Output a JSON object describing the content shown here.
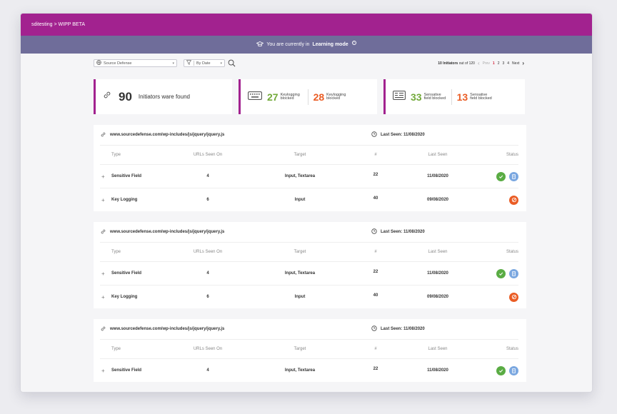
{
  "topbar": {
    "breadcrumb": "sditesting > WIPP BETA"
  },
  "mode_banner": {
    "prefix": "You are currently in",
    "mode": "Learning mode"
  },
  "toolbar": {
    "source_value": "Source Defense",
    "sort_value": "By Date",
    "pager": {
      "summary_count": "10 Initiators",
      "summary_rest": "out of 120",
      "prev": "Prev",
      "pages": [
        "1",
        "2",
        "3",
        "4"
      ],
      "active_page": "1",
      "next": "Next"
    }
  },
  "stats": {
    "initiators": {
      "count": "90",
      "label": "Initiators ware found"
    },
    "keylogging": {
      "blocked_a": "27",
      "label_a": "Keylogging blocked",
      "blocked_b": "28",
      "label_b": "Keylogging blocked"
    },
    "sensitive": {
      "blocked_a": "33",
      "label_a": "Sensative field blocked",
      "blocked_b": "13",
      "label_b": "Sensative field blocked"
    }
  },
  "columns": {
    "type": "Type",
    "urls": "URLs Seen On",
    "target": "Target",
    "hash": "#",
    "last_seen": "Last Seen",
    "status": "Status"
  },
  "groups": [
    {
      "url": "www.sourcedefense.com/wp-includes/js/jquery/jquery.js",
      "last_seen": "Last Seen: 11/08/2020",
      "rows": [
        {
          "type": "Sensitive Field",
          "urls": "4",
          "target": "Input, Textarea",
          "hash": "22",
          "last_seen": "11/08/2020",
          "status": [
            "check-icon",
            "document-icon"
          ]
        },
        {
          "type": "Key Logging",
          "urls": "6",
          "target": "Input",
          "hash": "40",
          "last_seen": "09/08/2020",
          "status": [
            "blocked-icon"
          ]
        }
      ]
    },
    {
      "url": "www.sourcedefense.com/wp-includes/js/jquery/jquery.js",
      "last_seen": "Last Seen: 11/08/2020",
      "rows": [
        {
          "type": "Sensitive Field",
          "urls": "4",
          "target": "Input, Textarea",
          "hash": "22",
          "last_seen": "11/08/2020",
          "status": [
            "check-icon",
            "document-icon"
          ]
        },
        {
          "type": "Key Logging",
          "urls": "6",
          "target": "Input",
          "hash": "40",
          "last_seen": "09/08/2020",
          "status": [
            "blocked-icon"
          ]
        }
      ]
    },
    {
      "url": "www.sourcedefense.com/wp-includes/js/jquery/jquery.js",
      "last_seen": "Last Seen: 11/08/2020",
      "rows": [
        {
          "type": "Sensitive Field",
          "urls": "4",
          "target": "Input, Textarea",
          "hash": "22",
          "last_seen": "11/08/2020",
          "status": [
            "check-icon",
            "document-icon"
          ]
        }
      ]
    }
  ],
  "colors": {
    "brand": "#a2228f",
    "banner": "#6f6d9a",
    "green": "#72a939",
    "orange": "#ea5c24",
    "active_page": "#d4263e"
  }
}
